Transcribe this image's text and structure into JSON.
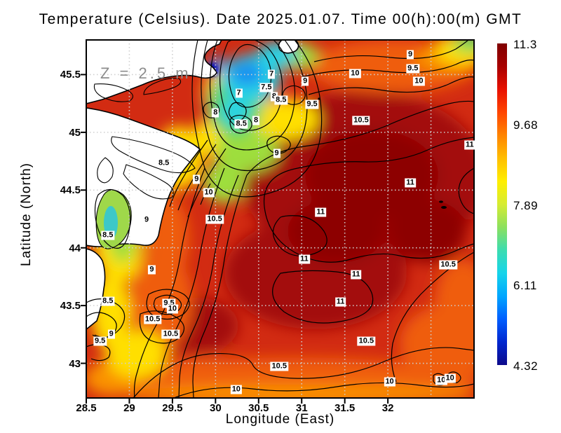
{
  "title": "Temperature (Celsius). Date 2025.01.07. Time 00(h):00(m) GMT",
  "annotation": "Z = 2.5 m",
  "axes": {
    "xlabel": "Longitude (East)",
    "ylabel": "Latitude (North)",
    "x_tick_labels": [
      "28.5",
      "29",
      "29.5",
      "30",
      "30.5",
      "31",
      "31.5",
      "32"
    ],
    "y_tick_labels": [
      "45.5",
      "45",
      "44.5",
      "44",
      "43.5",
      "43"
    ]
  },
  "colorbar": {
    "labels": [
      "11.3",
      "9.68",
      "7.89",
      "6.11",
      "4.32"
    ],
    "min": 4.32,
    "max": 11.3,
    "colormap": "jet",
    "gradient_stops": [
      "#7f0000",
      "#a80000",
      "#e81000",
      "#ff4500",
      "#ff8400",
      "#ffbe00",
      "#ffee00",
      "#d6ec32",
      "#8ce05e",
      "#3cdcb0",
      "#16d4ea",
      "#00a6ff",
      "#005eff",
      "#0026cf",
      "#0d0a8a"
    ]
  },
  "chart_data": {
    "type": "heatmap",
    "variable": "Temperature (Celsius)",
    "date": "2025.01.07",
    "time": "00(h):00(m) GMT",
    "depth": "Z = 2.5 m",
    "xlabel": "Longitude (East)",
    "ylabel": "Latitude (North)",
    "xlim": [
      28.5,
      33.0
    ],
    "ylim": [
      42.7,
      45.8
    ],
    "x_ticks": [
      28.5,
      29,
      29.5,
      30,
      30.5,
      31,
      31.5,
      32
    ],
    "y_ticks": [
      45.5,
      45,
      44.5,
      44,
      43.5,
      43
    ],
    "x_gridlines": [
      28.5,
      29,
      29.5,
      30,
      30.5,
      31,
      31.5,
      32,
      32.5
    ],
    "y_gridlines": [
      45.5,
      45,
      44.5,
      44,
      43.5,
      43
    ],
    "grid": "dotted",
    "contour_interval": 0.5,
    "value_range": [
      4.32,
      11.3
    ],
    "contour_labels": [
      {
        "v": "7",
        "lon": 30.65,
        "lat": 45.5
      },
      {
        "v": "7",
        "lon": 30.27,
        "lat": 45.34
      },
      {
        "v": "7.5",
        "lon": 30.59,
        "lat": 45.39
      },
      {
        "v": "8",
        "lon": 30.68,
        "lat": 45.31
      },
      {
        "v": "8.5",
        "lon": 30.76,
        "lat": 45.28
      },
      {
        "v": "9",
        "lon": 31.04,
        "lat": 45.44
      },
      {
        "v": "10",
        "lon": 31.62,
        "lat": 45.51
      },
      {
        "v": "9.5",
        "lon": 31.12,
        "lat": 45.24
      },
      {
        "v": "10.5",
        "lon": 31.69,
        "lat": 45.1
      },
      {
        "v": "8",
        "lon": 30.0,
        "lat": 45.17
      },
      {
        "v": "8.5",
        "lon": 30.3,
        "lat": 45.07
      },
      {
        "v": "8",
        "lon": 30.47,
        "lat": 45.1
      },
      {
        "v": "9",
        "lon": 30.71,
        "lat": 44.82
      },
      {
        "v": "9",
        "lon": 32.26,
        "lat": 45.67
      },
      {
        "v": "9.5",
        "lon": 32.29,
        "lat": 45.55
      },
      {
        "v": "10",
        "lon": 32.36,
        "lat": 45.44
      },
      {
        "v": "11",
        "lon": 32.95,
        "lat": 44.89
      },
      {
        "v": "11",
        "lon": 32.26,
        "lat": 44.56
      },
      {
        "v": "11",
        "lon": 31.22,
        "lat": 44.31
      },
      {
        "v": "11",
        "lon": 31.03,
        "lat": 43.9
      },
      {
        "v": "11",
        "lon": 31.63,
        "lat": 43.77
      },
      {
        "v": "11",
        "lon": 31.45,
        "lat": 43.53
      },
      {
        "v": "10.5",
        "lon": 32.7,
        "lat": 43.85
      },
      {
        "v": "8.5",
        "lon": 29.4,
        "lat": 44.73
      },
      {
        "v": "9",
        "lon": 29.78,
        "lat": 44.59
      },
      {
        "v": "10",
        "lon": 29.92,
        "lat": 44.48
      },
      {
        "v": "10.5",
        "lon": 29.99,
        "lat": 44.25
      },
      {
        "v": "9",
        "lon": 29.2,
        "lat": 44.24
      },
      {
        "v": "8.5",
        "lon": 28.75,
        "lat": 44.11
      },
      {
        "v": "9",
        "lon": 29.26,
        "lat": 43.81
      },
      {
        "v": "8.5",
        "lon": 28.75,
        "lat": 43.54
      },
      {
        "v": "9",
        "lon": 28.79,
        "lat": 43.25
      },
      {
        "v": "9.5",
        "lon": 28.66,
        "lat": 43.19
      },
      {
        "v": "9.5",
        "lon": 29.46,
        "lat": 43.52
      },
      {
        "v": "10",
        "lon": 29.5,
        "lat": 43.47
      },
      {
        "v": "10.5",
        "lon": 29.27,
        "lat": 43.38
      },
      {
        "v": "10.5",
        "lon": 29.48,
        "lat": 43.25
      },
      {
        "v": "10.5",
        "lon": 30.74,
        "lat": 42.97
      },
      {
        "v": "10.5",
        "lon": 31.75,
        "lat": 43.19
      },
      {
        "v": "10",
        "lon": 30.24,
        "lat": 42.77
      },
      {
        "v": "10",
        "lon": 32.02,
        "lat": 42.84
      },
      {
        "v": "10",
        "lon": 32.62,
        "lat": 42.85
      },
      {
        "v": "10",
        "lon": 32.72,
        "lat": 42.87
      }
    ]
  }
}
